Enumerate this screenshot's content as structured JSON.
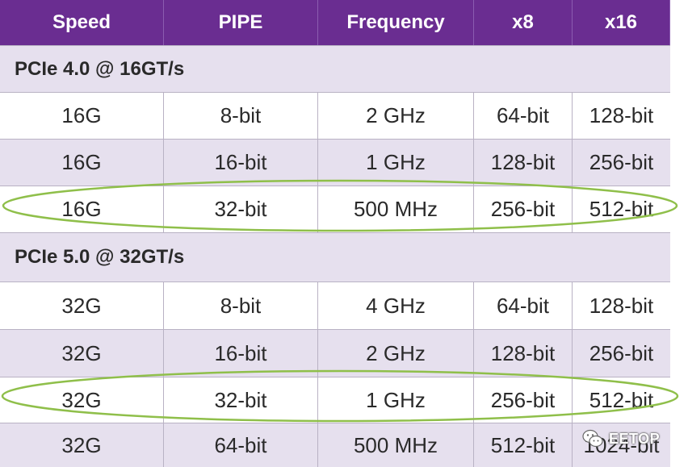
{
  "table": {
    "headers": [
      "Speed",
      "PIPE",
      "Frequency",
      "x8",
      "x16"
    ],
    "sections": [
      {
        "title": "PCIe 4.0 @ 16GT/s",
        "rows": [
          [
            "16G",
            "8-bit",
            "2 GHz",
            "64-bit",
            "128-bit"
          ],
          [
            "16G",
            "16-bit",
            "1 GHz",
            "128-bit",
            "256-bit"
          ],
          [
            "16G",
            "32-bit",
            "500 MHz",
            "256-bit",
            "512-bit"
          ]
        ]
      },
      {
        "title": "PCIe 5.0 @ 32GT/s",
        "rows": [
          [
            "32G",
            "8-bit",
            "4 GHz",
            "64-bit",
            "128-bit"
          ],
          [
            "32G",
            "16-bit",
            "2 GHz",
            "128-bit",
            "256-bit"
          ],
          [
            "32G",
            "32-bit",
            "1 GHz",
            "256-bit",
            "512-bit"
          ],
          [
            "32G",
            "64-bit",
            "500 MHz",
            "512-bit",
            "1024-bit"
          ]
        ]
      }
    ]
  },
  "colors": {
    "header_bg": "#6a2d91",
    "shade_bg": "#e6e0ee",
    "highlight_ellipse": "#8fbf4a"
  },
  "watermark": {
    "icon": "wechat-icon",
    "text": "EETOP"
  }
}
